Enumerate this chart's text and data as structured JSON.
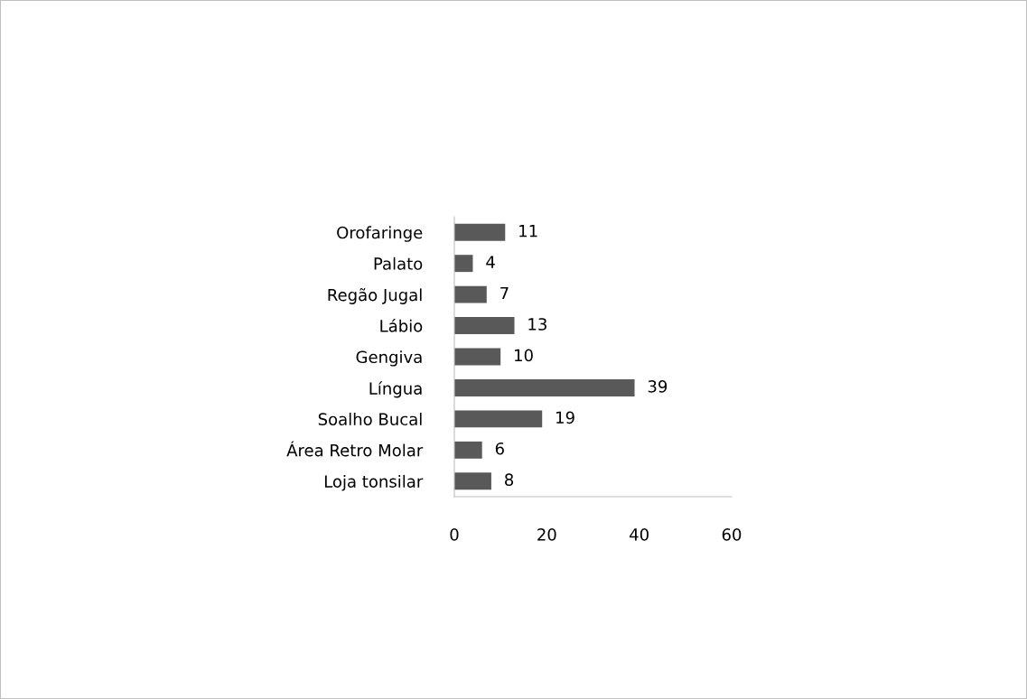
{
  "chart_data": {
    "type": "bar",
    "orientation": "horizontal",
    "categories": [
      "Orofaringe",
      "Palato",
      "Regão Jugal",
      "Lábio",
      "Gengiva",
      "Língua",
      "Soalho Bucal",
      "Área Retro Molar",
      "Loja tonsilar"
    ],
    "values": [
      11,
      4,
      7,
      13,
      10,
      39,
      19,
      6,
      8
    ],
    "color": "#595959",
    "xlim": [
      0,
      60
    ],
    "xticks": [
      0,
      20,
      40,
      60
    ],
    "grid": false,
    "legend": false,
    "data_labels": true
  }
}
